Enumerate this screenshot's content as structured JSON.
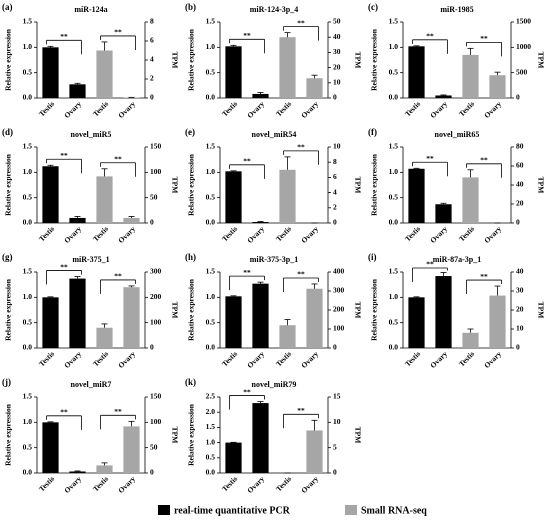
{
  "chart_data": [
    {
      "type": "bar",
      "label": "(a)",
      "title": "miR-124a",
      "ylabel": "Relative expression",
      "y2label": "TPM",
      "categories": [
        "Testis",
        "Ovary",
        "Testis",
        "Ovary"
      ],
      "ylim": [
        0,
        1.5
      ],
      "yticks": [
        {
          "value": 0,
          "label": "0.0"
        },
        {
          "value": 0.5,
          "label": "0.5"
        },
        {
          "value": 1,
          "label": "1.0"
        },
        {
          "value": 1.5,
          "label": "1.5"
        }
      ],
      "y2lim": [
        0,
        8
      ],
      "y2ticks": [
        0,
        2,
        4,
        6,
        8
      ],
      "series": [
        {
          "values": [
            1.0,
            0.27,
            null,
            null
          ],
          "errors": [
            0.02,
            0.02,
            null,
            null
          ]
        },
        {
          "axis": "y2",
          "values": [
            null,
            null,
            5.0,
            0.05
          ],
          "errors": [
            null,
            null,
            0.9,
            0.02
          ]
        }
      ],
      "annotations": [
        "**",
        "**"
      ]
    },
    {
      "type": "bar",
      "label": "(b)",
      "title": "miR-124-3p_4",
      "ylabel": "Relative expression",
      "y2label": "TPM",
      "categories": [
        "Testis",
        "Ovary",
        "Testis",
        "Ovary"
      ],
      "ylim": [
        0,
        1.5
      ],
      "yticks": [
        {
          "value": 0,
          "label": "0.0"
        },
        {
          "value": 0.5,
          "label": "0.5"
        },
        {
          "value": 1,
          "label": "1.0"
        },
        {
          "value": 1.5,
          "label": "1.5"
        }
      ],
      "y2lim": [
        0,
        50
      ],
      "y2ticks": [
        0,
        10,
        20,
        30,
        40,
        50
      ],
      "series": [
        {
          "values": [
            1.02,
            0.08,
            null,
            null
          ],
          "errors": [
            0.02,
            0.03,
            null,
            null
          ]
        },
        {
          "axis": "y2",
          "values": [
            null,
            null,
            40,
            13
          ],
          "errors": [
            null,
            null,
            3,
            2
          ]
        }
      ],
      "annotations": [
        "**",
        "**"
      ]
    },
    {
      "type": "bar",
      "label": "(c)",
      "title": "miR-1985",
      "ylabel": "Relative expression",
      "y2label": "TPM",
      "categories": [
        "Testis",
        "Ovary",
        "Testis",
        "Ovary"
      ],
      "ylim": [
        0,
        1.5
      ],
      "yticks": [
        {
          "value": 0,
          "label": "0.0"
        },
        {
          "value": 0.5,
          "label": "0.5"
        },
        {
          "value": 1,
          "label": "1.0"
        },
        {
          "value": 1.5,
          "label": "1.5"
        }
      ],
      "y2lim": [
        0,
        1500
      ],
      "y2ticks": [
        0,
        500,
        1000,
        1500
      ],
      "series": [
        {
          "values": [
            1.02,
            0.05,
            null,
            null
          ],
          "errors": [
            0.01,
            0.01,
            null,
            null
          ]
        },
        {
          "axis": "y2",
          "values": [
            null,
            null,
            850,
            450
          ],
          "errors": [
            null,
            null,
            130,
            60
          ]
        }
      ],
      "annotations": [
        "**",
        "**"
      ]
    },
    {
      "type": "bar",
      "label": "(d)",
      "title": "novel_miR5",
      "ylabel": "Relative expression",
      "y2label": "TPM",
      "categories": [
        "Testis",
        "Ovary",
        "Testis",
        "Ovary"
      ],
      "ylim": [
        0,
        1.5
      ],
      "yticks": [
        {
          "value": 0,
          "label": "0.0"
        },
        {
          "value": 0.5,
          "label": "0.5"
        },
        {
          "value": 1,
          "label": "1.0"
        },
        {
          "value": 1.5,
          "label": "1.5"
        }
      ],
      "y2lim": [
        0,
        150
      ],
      "y2ticks": [
        0,
        50,
        100,
        150
      ],
      "series": [
        {
          "values": [
            1.12,
            0.1,
            null,
            null
          ],
          "errors": [
            0.02,
            0.03,
            null,
            null
          ]
        },
        {
          "axis": "y2",
          "values": [
            null,
            null,
            92,
            10
          ],
          "errors": [
            null,
            null,
            15,
            3
          ]
        }
      ],
      "annotations": [
        "**",
        "**"
      ]
    },
    {
      "type": "bar",
      "label": "(e)",
      "title": "novel_miR54",
      "ylabel": "Relative expression",
      "y2label": "TPM",
      "categories": [
        "Testis",
        "Ovary",
        "Testis",
        "Ovary"
      ],
      "ylim": [
        0,
        1.5
      ],
      "yticks": [
        {
          "value": 0,
          "label": "0.0"
        },
        {
          "value": 0.5,
          "label": "0.5"
        },
        {
          "value": 1,
          "label": "1.0"
        },
        {
          "value": 1.5,
          "label": "1.5"
        }
      ],
      "y2lim": [
        0,
        10
      ],
      "y2ticks": [
        0,
        2,
        4,
        6,
        8,
        10
      ],
      "series": [
        {
          "values": [
            1.02,
            0.02,
            null,
            null
          ],
          "errors": [
            0.01,
            0.01,
            null,
            null
          ]
        },
        {
          "axis": "y2",
          "values": [
            null,
            null,
            7,
            0
          ],
          "errors": [
            null,
            null,
            1.7,
            0
          ]
        }
      ],
      "annotations": [
        "**",
        "**"
      ]
    },
    {
      "type": "bar",
      "label": "(f)",
      "title": "novel_miR65",
      "ylabel": "Relative expression",
      "y2label": "TPM",
      "categories": [
        "Testis",
        "Ovary",
        "Testis",
        "Ovary"
      ],
      "ylim": [
        0,
        1.5
      ],
      "yticks": [
        {
          "value": 0,
          "label": "0.0"
        },
        {
          "value": 0.5,
          "label": "0.5"
        },
        {
          "value": 1,
          "label": "1.0"
        },
        {
          "value": 1.5,
          "label": "1.5"
        }
      ],
      "y2lim": [
        0,
        80
      ],
      "y2ticks": [
        0,
        20,
        40,
        60,
        80
      ],
      "series": [
        {
          "values": [
            1.07,
            0.37,
            null,
            null
          ],
          "errors": [
            0.01,
            0.02,
            null,
            null
          ]
        },
        {
          "axis": "y2",
          "values": [
            null,
            null,
            48,
            0
          ],
          "errors": [
            null,
            null,
            8,
            0
          ]
        }
      ],
      "annotations": [
        "**",
        "**"
      ]
    },
    {
      "type": "bar",
      "label": "(g)",
      "title": "miR-375_1",
      "ylabel": "Relative expression",
      "y2label": "TPM",
      "categories": [
        "Testis",
        "Ovary",
        "Testis",
        "Ovary"
      ],
      "ylim": [
        0,
        1.5
      ],
      "yticks": [
        {
          "value": 0,
          "label": "0.0"
        },
        {
          "value": 0.5,
          "label": "0.5"
        },
        {
          "value": 1,
          "label": "1.0"
        },
        {
          "value": 1.5,
          "label": "1.5"
        }
      ],
      "y2lim": [
        0,
        300
      ],
      "y2ticks": [
        0,
        100,
        200,
        300
      ],
      "series": [
        {
          "values": [
            1.0,
            1.37,
            null,
            null
          ],
          "errors": [
            0.01,
            0.04,
            null,
            null
          ]
        },
        {
          "axis": "y2",
          "values": [
            null,
            null,
            80,
            240
          ],
          "errors": [
            null,
            null,
            15,
            5
          ]
        }
      ],
      "annotations": [
        "**",
        "**"
      ]
    },
    {
      "type": "bar",
      "label": "(h)",
      "title": "miR-375-3p_1",
      "ylabel": "Relative expression",
      "y2label": "TPM",
      "categories": [
        "Testis",
        "Ovary",
        "Testis",
        "Ovary"
      ],
      "ylim": [
        0,
        1.5
      ],
      "yticks": [
        {
          "value": 0,
          "label": "0.0"
        },
        {
          "value": 0.5,
          "label": "0.5"
        },
        {
          "value": 1,
          "label": "1.0"
        },
        {
          "value": 1.5,
          "label": "1.5"
        }
      ],
      "y2lim": [
        0,
        400
      ],
      "y2ticks": [
        0,
        100,
        200,
        300,
        400
      ],
      "series": [
        {
          "values": [
            1.02,
            1.27,
            null,
            null
          ],
          "errors": [
            0.01,
            0.03,
            null,
            null
          ]
        },
        {
          "axis": "y2",
          "values": [
            null,
            null,
            120,
            312
          ],
          "errors": [
            null,
            null,
            30,
            25
          ]
        }
      ],
      "annotations": [
        "**",
        "**"
      ]
    },
    {
      "type": "bar",
      "label": "(i)",
      "title": "miR-87a-3p_1",
      "ylabel": "Relative expression",
      "y2label": "TPM",
      "categories": [
        "Testis",
        "Ovary",
        "Testis",
        "Ovary"
      ],
      "ylim": [
        0,
        1.5
      ],
      "yticks": [
        {
          "value": 0,
          "label": "0.0"
        },
        {
          "value": 0.5,
          "label": "0.5"
        },
        {
          "value": 1,
          "label": "1.0"
        },
        {
          "value": 1.5,
          "label": "1.5"
        }
      ],
      "y2lim": [
        0,
        40
      ],
      "y2ticks": [
        0,
        10,
        20,
        30,
        40
      ],
      "series": [
        {
          "values": [
            1.0,
            1.42,
            null,
            null
          ],
          "errors": [
            0.01,
            0.07,
            null,
            null
          ]
        },
        {
          "axis": "y2",
          "values": [
            null,
            null,
            8,
            27.6
          ],
          "errors": [
            null,
            null,
            2,
            5
          ]
        }
      ],
      "annotations": [
        "**",
        "**"
      ]
    },
    {
      "type": "bar",
      "label": "(j)",
      "title": "novel_miR7",
      "ylabel": "Relative expression",
      "y2label": "TPM",
      "categories": [
        "Testis",
        "Ovary",
        "Testis",
        "Ovary"
      ],
      "ylim": [
        0,
        1.5
      ],
      "yticks": [
        {
          "value": 0,
          "label": "0.0"
        },
        {
          "value": 0.5,
          "label": "0.5"
        },
        {
          "value": 1,
          "label": "1.0"
        },
        {
          "value": 1.5,
          "label": "1.5"
        }
      ],
      "y2lim": [
        0,
        150
      ],
      "y2ticks": [
        0,
        50,
        100,
        150
      ],
      "series": [
        {
          "values": [
            1.0,
            0.03,
            null,
            null
          ],
          "errors": [
            0.01,
            0.01,
            null,
            null
          ]
        },
        {
          "axis": "y2",
          "values": [
            null,
            null,
            15,
            92
          ],
          "errors": [
            null,
            null,
            5,
            10
          ]
        }
      ],
      "annotations": [
        "**",
        "**"
      ]
    },
    {
      "type": "bar",
      "label": "(k)",
      "title": "novel_miR79",
      "ylabel": "Relative expression",
      "y2label": "TPM",
      "categories": [
        "Testis",
        "Ovary",
        "Testis",
        "Ovary"
      ],
      "ylim": [
        0,
        2.5
      ],
      "yticks": [
        {
          "value": 0,
          "label": "0.0"
        },
        {
          "value": 0.5,
          "label": "0.5"
        },
        {
          "value": 1,
          "label": "1.0"
        },
        {
          "value": 1.5,
          "label": "1.5"
        },
        {
          "value": 2,
          "label": "2.0"
        },
        {
          "value": 2.5,
          "label": "2.5"
        }
      ],
      "y2lim": [
        0,
        15
      ],
      "y2ticks": [
        0,
        5,
        10,
        15
      ],
      "series": [
        {
          "values": [
            1.0,
            2.3,
            null,
            null
          ],
          "errors": [
            0.01,
            0.05,
            null,
            null
          ]
        },
        {
          "axis": "y2",
          "values": [
            null,
            null,
            0,
            8.4
          ],
          "errors": [
            null,
            null,
            0,
            2
          ]
        }
      ],
      "annotations": [
        "**",
        "**"
      ]
    }
  ],
  "legend": [
    {
      "name": "real-time quantitative PCR",
      "color": "#000000"
    },
    {
      "name": "Small RNA-seq",
      "color": "#a6a6a6"
    }
  ]
}
